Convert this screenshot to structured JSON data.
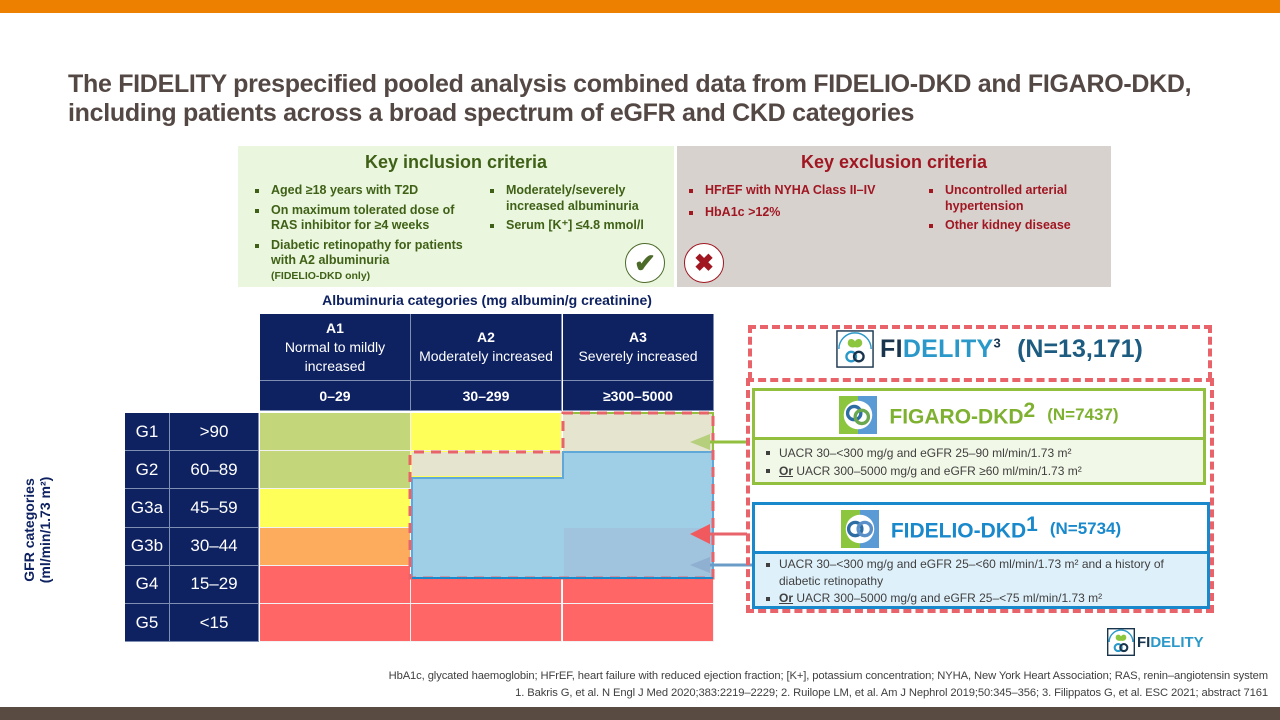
{
  "title": "The FIDELITY prespecified pooled analysis combined data from FIDELIO-DKD and FIGARO-DKD, including patients across a broad spectrum of eGFR and CKD categories",
  "colors": {
    "top_bar": "#ee8000",
    "bottom_bar": "#594a42",
    "grid_navy": "#0e2160",
    "green": "#c3d67a",
    "yellow": "#ffff5a",
    "orange": "#fdac5e",
    "red": "#ff6665",
    "figaro": "#92c03e",
    "fidelio": "#1a89cc",
    "fidelity_dash": "#e8636a"
  },
  "inclusion": {
    "heading": "Key inclusion criteria",
    "col1": [
      {
        "text": "Aged ≥18 years with T2D"
      },
      {
        "text": "On maximum tolerated dose of RAS inhibitor for ≥4 weeks"
      },
      {
        "text": "Diabetic retinopathy for patients with A2 albuminuria",
        "note": "(FIDELIO-DKD  only)"
      }
    ],
    "col2": [
      {
        "text": "Moderately/severely increased albuminuria"
      },
      {
        "text": "Serum [K⁺] ≤4.8 mmol/l"
      }
    ],
    "icon": "check-icon"
  },
  "exclusion": {
    "heading": "Key exclusion criteria",
    "col1": [
      {
        "text": "HFrEF  with NYHA  Class II–IV"
      },
      {
        "text": "HbA1c  >12%"
      }
    ],
    "col2": [
      {
        "text": "Uncontrolled arterial hypertension"
      },
      {
        "text": "Other kidney disease"
      }
    ],
    "icon": "cross-icon"
  },
  "grid": {
    "albuminuria_title": "Albuminuria categories (mg albumin/g creatinine)",
    "gfr_title_line1": "GFR categories",
    "gfr_title_line2": "(ml/min/1.73  m²)",
    "columns": [
      {
        "code": "A1",
        "desc": "Normal to mildly increased",
        "range": "0–29"
      },
      {
        "code": "A2",
        "desc": "Moderately increased",
        "range": "30–299"
      },
      {
        "code": "A3",
        "desc": "Severely increased",
        "range": "≥300–5000"
      }
    ],
    "rows": [
      {
        "code": "G1",
        "range": ">90",
        "risk": [
          "green",
          "yellow",
          "orange"
        ]
      },
      {
        "code": "G2",
        "range": "60–89",
        "risk": [
          "green",
          "yellow",
          "orange"
        ]
      },
      {
        "code": "G3a",
        "range": "45–59",
        "risk": [
          "yellow",
          "orange",
          "red"
        ]
      },
      {
        "code": "G3b",
        "range": "30–44",
        "risk": [
          "orange",
          "red",
          "red"
        ]
      },
      {
        "code": "G4",
        "range": "15–29",
        "risk": [
          "red",
          "red",
          "red"
        ]
      },
      {
        "code": "G5",
        "range": "<15",
        "risk": [
          "red",
          "red",
          "red"
        ]
      }
    ]
  },
  "fidelity": {
    "name_prefix": "FI",
    "name_rest": "DELITY",
    "ref": "3",
    "n": "(N=13,171)"
  },
  "figaro": {
    "name": "FIGARO-DKD",
    "ref": "2",
    "n": "(N=7437)",
    "criteria": [
      {
        "or": "",
        "text": "UACR 30–<300 mg/g and eGFR 25–90 ml/min/1.73 m²"
      },
      {
        "or": "Or",
        "text": " UACR 300–5000 mg/g and eGFR ≥60 ml/min/1.73 m²"
      }
    ]
  },
  "fidelio": {
    "name": "FIDELIO-DKD",
    "ref": "1",
    "n": "(N=5734)",
    "criteria": [
      {
        "or": "",
        "text": "UACR 30–<300 mg/g and eGFR 25–<60 ml/min/1.73 m² and a history of diabetic retinopathy"
      },
      {
        "or": "Or",
        "text": " UACR 300–5000 mg/g and eGFR 25–<75 ml/min/1.73 m²"
      }
    ]
  },
  "footer_logo": {
    "prefix": "FI",
    "rest": "DELITY"
  },
  "footnotes": [
    "HbA1c,  glycated haemoglobin; HFrEF,  heart failure with reduced ejection fraction; [K+], potassium concentration; NYHA,  New York Heart Association; RAS,  renin–angiotensin system",
    "1. Bakris G, et al. N Engl J Med 2020;383:2219–2229; 2. Ruilope LM, et al. Am J Nephrol 2019;50:345–356; 3. Filippatos G, et al. ESC 2021; abstract 7161"
  ]
}
